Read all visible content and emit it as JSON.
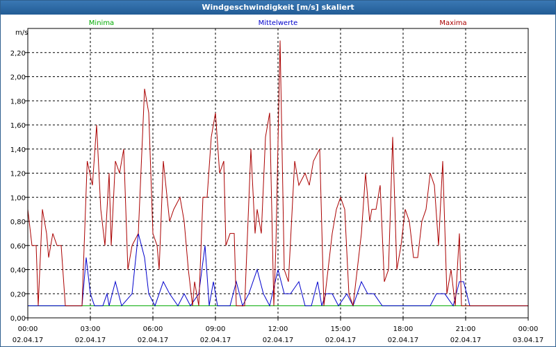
{
  "window": {
    "title": "Windgeschwindigkeit [m/s] skaliert"
  },
  "chart_data": {
    "type": "line",
    "ylabel": "m/s",
    "ylim": [
      0,
      2.4
    ],
    "yticks": [
      "0,00",
      "0,20",
      "0,40",
      "0,60",
      "0,80",
      "1,00",
      "1,20",
      "1,40",
      "1,60",
      "1,80",
      "2,00",
      "2,20"
    ],
    "xticks": [
      {
        "time": "00:00",
        "date": "02.04.17"
      },
      {
        "time": "03:00",
        "date": "02.04.17"
      },
      {
        "time": "06:00",
        "date": "02.04.17"
      },
      {
        "time": "09:00",
        "date": "02.04.17"
      },
      {
        "time": "12:00",
        "date": "02.04.17"
      },
      {
        "time": "15:00",
        "date": "02.04.17"
      },
      {
        "time": "18:00",
        "date": "02.04.17"
      },
      {
        "time": "21:00",
        "date": "02.04.17"
      },
      {
        "time": "00:00",
        "date": "03.04.17"
      }
    ],
    "xlim_hours": [
      0,
      24
    ],
    "grid": true,
    "series": [
      {
        "name": "Minima",
        "color": "#00aa00",
        "points": [
          [
            0,
            0.1
          ],
          [
            24,
            0.1
          ]
        ]
      },
      {
        "name": "Mittelwerte",
        "color": "#0000cc",
        "points": [
          [
            0,
            0.1
          ],
          [
            2.6,
            0.1
          ],
          [
            2.8,
            0.5
          ],
          [
            3.0,
            0.2
          ],
          [
            3.2,
            0.1
          ],
          [
            3.6,
            0.1
          ],
          [
            3.8,
            0.2
          ],
          [
            3.9,
            0.1
          ],
          [
            4.2,
            0.3
          ],
          [
            4.5,
            0.1
          ],
          [
            5.0,
            0.2
          ],
          [
            5.3,
            0.7
          ],
          [
            5.6,
            0.5
          ],
          [
            5.8,
            0.2
          ],
          [
            6.1,
            0.1
          ],
          [
            6.5,
            0.3
          ],
          [
            6.8,
            0.2
          ],
          [
            7.2,
            0.1
          ],
          [
            7.5,
            0.2
          ],
          [
            7.8,
            0.1
          ],
          [
            8.2,
            0.2
          ],
          [
            8.5,
            0.6
          ],
          [
            8.7,
            0.1
          ],
          [
            8.9,
            0.3
          ],
          [
            9.1,
            0.1
          ],
          [
            9.7,
            0.1
          ],
          [
            10.0,
            0.3
          ],
          [
            10.3,
            0.1
          ],
          [
            10.6,
            0.2
          ],
          [
            11.0,
            0.4
          ],
          [
            11.3,
            0.2
          ],
          [
            11.6,
            0.1
          ],
          [
            12.0,
            0.4
          ],
          [
            12.3,
            0.2
          ],
          [
            12.6,
            0.2
          ],
          [
            13.0,
            0.3
          ],
          [
            13.3,
            0.1
          ],
          [
            13.6,
            0.1
          ],
          [
            13.9,
            0.3
          ],
          [
            14.1,
            0.1
          ],
          [
            14.3,
            0.2
          ],
          [
            14.6,
            0.2
          ],
          [
            14.9,
            0.1
          ],
          [
            15.3,
            0.2
          ],
          [
            15.6,
            0.1
          ],
          [
            16.0,
            0.3
          ],
          [
            16.3,
            0.2
          ],
          [
            16.6,
            0.2
          ],
          [
            17.0,
            0.1
          ],
          [
            19.3,
            0.1
          ],
          [
            19.6,
            0.2
          ],
          [
            20.0,
            0.2
          ],
          [
            20.4,
            0.1
          ],
          [
            20.7,
            0.3
          ],
          [
            20.9,
            0.3
          ],
          [
            21.2,
            0.1
          ],
          [
            22.5,
            0.1
          ],
          [
            24,
            0.1
          ]
        ]
      },
      {
        "name": "Maxima",
        "color": "#aa0000",
        "points": [
          [
            0,
            0.9
          ],
          [
            0.2,
            0.6
          ],
          [
            0.4,
            0.6
          ],
          [
            0.5,
            0.1
          ],
          [
            0.7,
            0.9
          ],
          [
            0.9,
            0.7
          ],
          [
            1.0,
            0.5
          ],
          [
            1.2,
            0.7
          ],
          [
            1.4,
            0.6
          ],
          [
            1.6,
            0.6
          ],
          [
            1.8,
            0.1
          ],
          [
            2.6,
            0.1
          ],
          [
            2.85,
            1.3
          ],
          [
            3.1,
            1.1
          ],
          [
            3.3,
            1.6
          ],
          [
            3.5,
            0.9
          ],
          [
            3.7,
            0.6
          ],
          [
            3.9,
            1.2
          ],
          [
            4.0,
            0.6
          ],
          [
            4.2,
            1.3
          ],
          [
            4.4,
            1.2
          ],
          [
            4.6,
            1.4
          ],
          [
            4.8,
            0.4
          ],
          [
            5.0,
            0.6
          ],
          [
            5.3,
            0.7
          ],
          [
            5.6,
            1.9
          ],
          [
            5.8,
            1.7
          ],
          [
            6.0,
            0.7
          ],
          [
            6.2,
            0.6
          ],
          [
            6.3,
            0.4
          ],
          [
            6.5,
            1.3
          ],
          [
            6.8,
            0.8
          ],
          [
            7.0,
            0.9
          ],
          [
            7.3,
            1.0
          ],
          [
            7.5,
            0.8
          ],
          [
            7.7,
            0.4
          ],
          [
            7.9,
            0.1
          ],
          [
            8.0,
            0.3
          ],
          [
            8.2,
            0.1
          ],
          [
            8.4,
            1.0
          ],
          [
            8.6,
            1.0
          ],
          [
            8.8,
            1.5
          ],
          [
            9.0,
            1.7
          ],
          [
            9.2,
            1.2
          ],
          [
            9.4,
            1.3
          ],
          [
            9.5,
            0.6
          ],
          [
            9.7,
            0.7
          ],
          [
            9.9,
            0.7
          ],
          [
            10.0,
            0.1
          ],
          [
            10.4,
            0.1
          ],
          [
            10.7,
            1.4
          ],
          [
            10.9,
            0.7
          ],
          [
            11.0,
            0.9
          ],
          [
            11.2,
            0.7
          ],
          [
            11.4,
            1.5
          ],
          [
            11.6,
            1.7
          ],
          [
            11.8,
            0.1
          ],
          [
            11.9,
            0.6
          ],
          [
            12.1,
            2.3
          ],
          [
            12.3,
            0.4
          ],
          [
            12.5,
            0.3
          ],
          [
            12.8,
            1.3
          ],
          [
            13.0,
            1.1
          ],
          [
            13.3,
            1.2
          ],
          [
            13.5,
            1.1
          ],
          [
            13.7,
            1.3
          ],
          [
            14.0,
            1.4
          ],
          [
            14.2,
            0.1
          ],
          [
            14.4,
            0.4
          ],
          [
            14.6,
            0.7
          ],
          [
            14.8,
            0.9
          ],
          [
            15.0,
            1.0
          ],
          [
            15.2,
            0.9
          ],
          [
            15.4,
            0.2
          ],
          [
            15.6,
            0.1
          ],
          [
            16.0,
            0.7
          ],
          [
            16.2,
            1.2
          ],
          [
            16.4,
            0.8
          ],
          [
            16.5,
            0.9
          ],
          [
            16.7,
            0.9
          ],
          [
            16.9,
            1.1
          ],
          [
            17.1,
            0.3
          ],
          [
            17.3,
            0.4
          ],
          [
            17.5,
            1.5
          ],
          [
            17.7,
            0.4
          ],
          [
            17.9,
            0.6
          ],
          [
            18.1,
            0.9
          ],
          [
            18.3,
            0.8
          ],
          [
            18.5,
            0.5
          ],
          [
            18.7,
            0.5
          ],
          [
            18.9,
            0.8
          ],
          [
            19.1,
            0.9
          ],
          [
            19.3,
            1.2
          ],
          [
            19.5,
            1.1
          ],
          [
            19.7,
            0.6
          ],
          [
            19.9,
            1.3
          ],
          [
            20.1,
            0.2
          ],
          [
            20.3,
            0.4
          ],
          [
            20.5,
            0.1
          ],
          [
            20.7,
            0.7
          ],
          [
            20.8,
            0.1
          ],
          [
            24,
            0.1
          ]
        ]
      }
    ]
  }
}
